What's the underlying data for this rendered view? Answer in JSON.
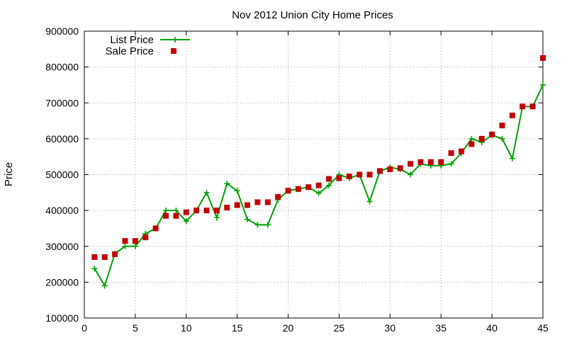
{
  "chart_data": {
    "type": "line",
    "title": "Nov 2012 Union City Home Prices",
    "xlabel": "",
    "ylabel": "Price",
    "xlim": [
      0,
      45
    ],
    "ylim": [
      100000,
      900000
    ],
    "x_ticks": [
      0,
      5,
      10,
      15,
      20,
      25,
      30,
      35,
      40,
      45
    ],
    "y_ticks": [
      100000,
      200000,
      300000,
      400000,
      500000,
      600000,
      700000,
      800000,
      900000
    ],
    "grid": true,
    "legend_position": "top-left",
    "series": [
      {
        "name": "List Price",
        "style": "linespoints",
        "marker": "plus",
        "color": "#00a000",
        "x": [
          1,
          2,
          3,
          4,
          5,
          6,
          7,
          8,
          9,
          10,
          11,
          12,
          13,
          14,
          15,
          16,
          17,
          18,
          19,
          20,
          21,
          22,
          23,
          24,
          25,
          26,
          27,
          28,
          29,
          30,
          31,
          32,
          33,
          34,
          35,
          36,
          37,
          38,
          39,
          40,
          41,
          42,
          43,
          44,
          45
        ],
        "y": [
          238000,
          190000,
          280000,
          300000,
          300000,
          335000,
          350000,
          400000,
          400000,
          370000,
          400000,
          450000,
          380000,
          475000,
          455000,
          375000,
          360000,
          360000,
          430000,
          455000,
          460000,
          465000,
          448000,
          470000,
          500000,
          490000,
          500000,
          425000,
          510000,
          520000,
          515000,
          500000,
          530000,
          525000,
          525000,
          530000,
          560000,
          600000,
          590000,
          610000,
          600000,
          545000,
          690000,
          690000,
          750000
        ]
      },
      {
        "name": "Sale Price",
        "style": "points",
        "marker": "square",
        "color": "#c00000",
        "x": [
          1,
          2,
          3,
          4,
          5,
          6,
          7,
          8,
          9,
          10,
          11,
          12,
          13,
          14,
          15,
          16,
          17,
          18,
          19,
          20,
          21,
          22,
          23,
          24,
          25,
          26,
          27,
          28,
          29,
          30,
          31,
          32,
          33,
          34,
          35,
          36,
          37,
          38,
          39,
          40,
          41,
          42,
          43,
          44,
          45
        ],
        "y": [
          270000,
          270000,
          278000,
          315000,
          315000,
          325000,
          350000,
          385000,
          385000,
          395000,
          400000,
          400000,
          400000,
          408000,
          415000,
          415000,
          423000,
          423000,
          438000,
          455000,
          460000,
          465000,
          470000,
          488000,
          490000,
          495000,
          500000,
          500000,
          510000,
          515000,
          518000,
          530000,
          535000,
          535000,
          535000,
          560000,
          565000,
          585000,
          600000,
          612000,
          637000,
          665000,
          690000,
          690000,
          825000
        ]
      }
    ]
  }
}
